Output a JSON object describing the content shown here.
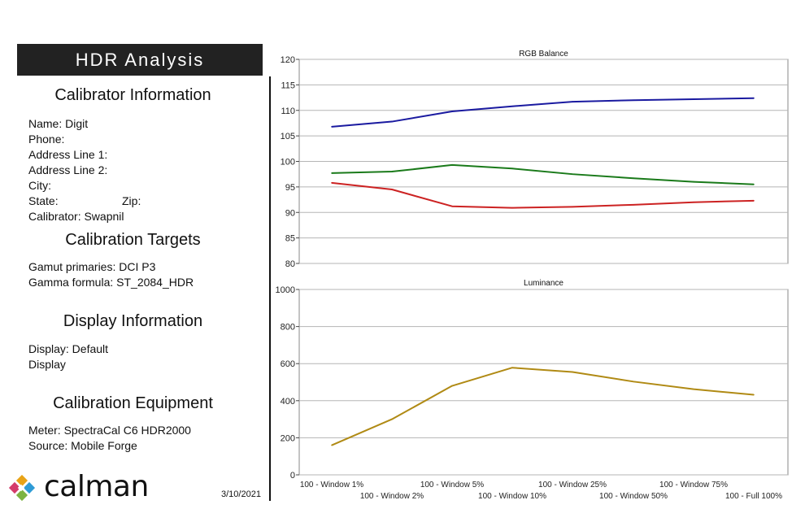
{
  "header": {
    "title": "HDR Analysis"
  },
  "calibrator": {
    "title": "Calibrator Information",
    "name": "Name: Digit",
    "phone": "Phone:",
    "address1": "Address Line 1:",
    "address2": "Address Line 2:",
    "city": "City:",
    "state": "State:",
    "zip": "Zip:",
    "calibrator": "Calibrator: Swapnil"
  },
  "targets": {
    "title": "Calibration Targets",
    "gamut": "Gamut primaries: DCI P3",
    "gamma": "Gamma formula: ST_2084_HDR"
  },
  "display": {
    "title": "Display Information",
    "display": "Display: Default",
    "display2": "Display"
  },
  "equipment": {
    "title": "Calibration Equipment",
    "meter": "Meter: SpectraCal C6 HDR2000",
    "source": "Source: Mobile Forge"
  },
  "footer": {
    "logo_text": "calman",
    "date": "3/10/2021"
  },
  "chart_data": [
    {
      "type": "line",
      "title": "RGB Balance",
      "ylim": [
        80,
        120
      ],
      "yticks": [
        80,
        85,
        90,
        95,
        100,
        105,
        110,
        115,
        120
      ],
      "grid": true,
      "x": [
        1,
        2,
        5,
        10,
        25,
        50,
        75,
        100
      ],
      "series": [
        {
          "color": "#1a1aa0",
          "values": [
            106.8,
            107.8,
            109.8,
            110.8,
            111.7,
            112.0,
            112.2,
            112.4
          ]
        },
        {
          "color": "#1a7a1a",
          "values": [
            97.7,
            98.0,
            99.3,
            98.6,
            97.5,
            96.7,
            96.0,
            95.5
          ]
        },
        {
          "color": "#cc2222",
          "values": [
            95.8,
            94.5,
            91.2,
            90.9,
            91.1,
            91.5,
            92.0,
            92.3
          ]
        }
      ]
    },
    {
      "type": "line",
      "title": "Luminance",
      "ylim": [
        0,
        1000
      ],
      "yticks": [
        0,
        200,
        400,
        600,
        800,
        1000
      ],
      "grid": true,
      "x": [
        1,
        2,
        5,
        10,
        25,
        50,
        75,
        100
      ],
      "x_tick_labels": [
        {
          "label": "100 - Window  1%",
          "row": 0
        },
        {
          "label": "100 - Window  2%",
          "row": 1
        },
        {
          "label": "100 - Window  5%",
          "row": 0
        },
        {
          "label": "100 - Window 10%",
          "row": 1
        },
        {
          "label": "100 - Window 25%",
          "row": 0
        },
        {
          "label": "100 - Window 50%",
          "row": 1
        },
        {
          "label": "100 - Window 75%",
          "row": 0
        },
        {
          "label": "100 - Full  100%",
          "row": 1
        }
      ],
      "series": [
        {
          "color": "#b08a14",
          "values": [
            160,
            300,
            480,
            578,
            555,
            503,
            462,
            432
          ]
        }
      ]
    }
  ]
}
